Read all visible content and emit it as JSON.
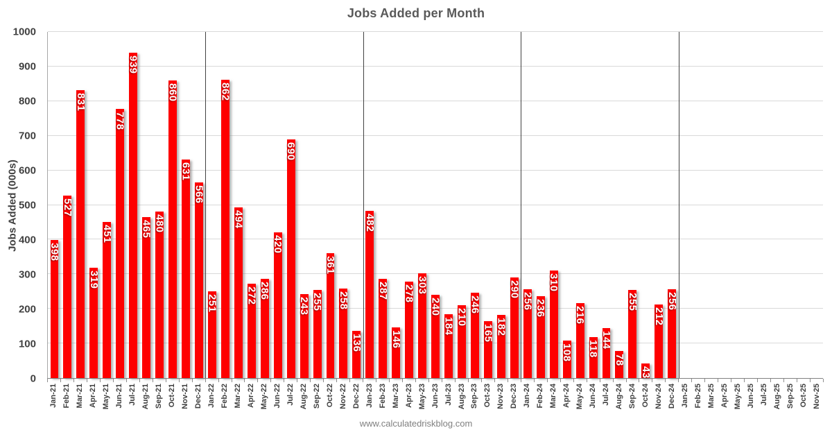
{
  "chart_data": {
    "type": "bar",
    "title": "Jobs Added per Month",
    "xlabel": "",
    "ylabel": "Jobs Added (000s)",
    "footer": "www.calculatedriskblog.com",
    "ylim": [
      0,
      1000
    ],
    "ytick_step": 100,
    "grid": true,
    "legend_position": "none",
    "bar_color": "#FE0000",
    "bar_label_color": "#FFFFFF",
    "grid_color": "#D9D9D9",
    "divider_color": "#404040",
    "categories": [
      "Jan-21",
      "Feb-21",
      "Mar-21",
      "Apr-21",
      "May-21",
      "Jun-21",
      "Jul-21",
      "Aug-21",
      "Sep-21",
      "Oct-21",
      "Nov-21",
      "Dec-21",
      "Jan-22",
      "Feb-22",
      "Mar-22",
      "Apr-22",
      "May-22",
      "Jun-22",
      "Jul-22",
      "Aug-22",
      "Sep-22",
      "Oct-22",
      "Nov-22",
      "Dec-22",
      "Jan-23",
      "Feb-23",
      "Mar-23",
      "Apr-23",
      "May-23",
      "Jun-23",
      "Jul-23",
      "Aug-23",
      "Sep-23",
      "Oct-23",
      "Nov-23",
      "Dec-23",
      "Jan-24",
      "Feb-24",
      "Mar-24",
      "Apr-24",
      "May-24",
      "Jun-24",
      "Jul-24",
      "Aug-24",
      "Sep-24",
      "Oct-24",
      "Nov-24",
      "Dec-24",
      "Jan-25",
      "Feb-25",
      "Mar-25",
      "Apr-25",
      "May-25",
      "Jun-25",
      "Jul-25",
      "Aug-25",
      "Sep-25",
      "Oct-25",
      "Nov-25"
    ],
    "values": [
      398,
      527,
      831,
      319,
      451,
      778,
      939,
      465,
      480,
      860,
      631,
      566,
      251,
      862,
      494,
      272,
      286,
      420,
      690,
      243,
      255,
      361,
      258,
      136,
      482,
      287,
      146,
      278,
      303,
      240,
      184,
      210,
      246,
      165,
      182,
      290,
      256,
      236,
      310,
      108,
      216,
      118,
      144,
      78,
      255,
      43,
      212,
      256,
      null,
      null,
      null,
      null,
      null,
      null,
      null,
      null,
      null,
      null,
      null
    ],
    "year_dividers_after": [
      "Dec-21",
      "Dec-22",
      "Dec-23",
      "Dec-24"
    ]
  }
}
